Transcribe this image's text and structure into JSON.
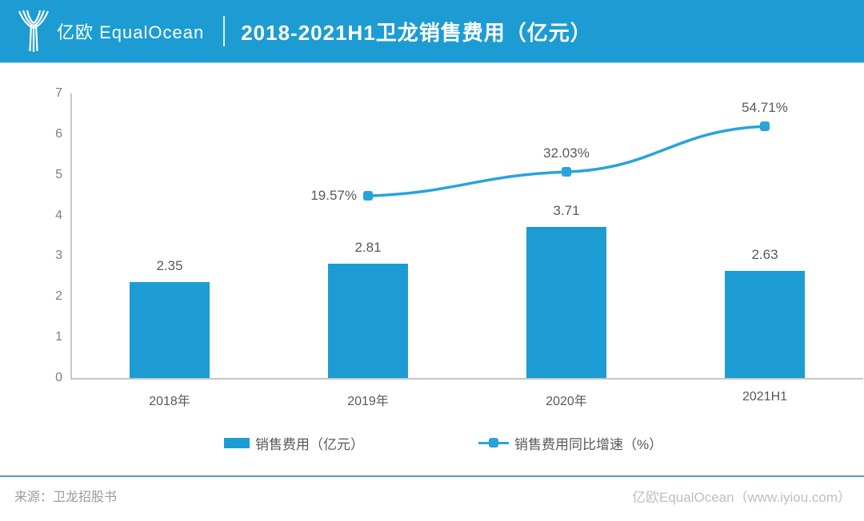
{
  "header": {
    "logo_text": "亿欧 EqualOcean",
    "title": "2018-2021H1卫龙销售费用（亿元）"
  },
  "chart_data": {
    "type": "combo bar+line",
    "categories": [
      "2018年",
      "2019年",
      "2020年",
      "2021H1"
    ],
    "series": [
      {
        "name": "销售费用（亿元）",
        "type": "bar",
        "values": [
          2.35,
          2.81,
          3.71,
          2.63
        ],
        "labels": [
          "2.35",
          "2.81",
          "3.71",
          "2.63"
        ]
      },
      {
        "name": "销售费用同比增速（%）",
        "type": "line",
        "values": [
          null,
          19.57,
          32.03,
          54.71
        ],
        "labels": [
          "",
          "19.57%",
          "32.03%",
          "54.71%"
        ],
        "label_placements": [
          "",
          "left",
          "above",
          "above"
        ]
      }
    ],
    "title": "2018-2021H1卫龙销售费用（亿元）",
    "xlabel": "",
    "ylabel": "",
    "ylim": [
      0,
      7
    ],
    "yticks": [
      0,
      1,
      2,
      3,
      4,
      5,
      6,
      7
    ],
    "grid": false,
    "legend_position": "bottom",
    "line_points_on_primary_axis": [
      null,
      4.48,
      5.07,
      6.19
    ]
  },
  "legend": {
    "items": [
      {
        "label": "销售费用（亿元）",
        "swatch": "bar-swatch"
      },
      {
        "label": "销售费用同比增速（%）",
        "swatch": "line-marker-swatch"
      }
    ]
  },
  "footer": {
    "source": "来源：卫龙招股书",
    "brand": "亿欧EqualOcean（www.iyiou.com）"
  },
  "colors": {
    "header_bg": "#1d9cd3",
    "bar": "#1d9cd3",
    "line": "#29a3dc",
    "axis": "#c6c6c6",
    "value_text": "#595959",
    "tick_text": "#808080",
    "footer_source_text": "#9b9b9b",
    "footer_brand_text": "#b9c1c5",
    "footer_divider": "#4aa0c9"
  }
}
